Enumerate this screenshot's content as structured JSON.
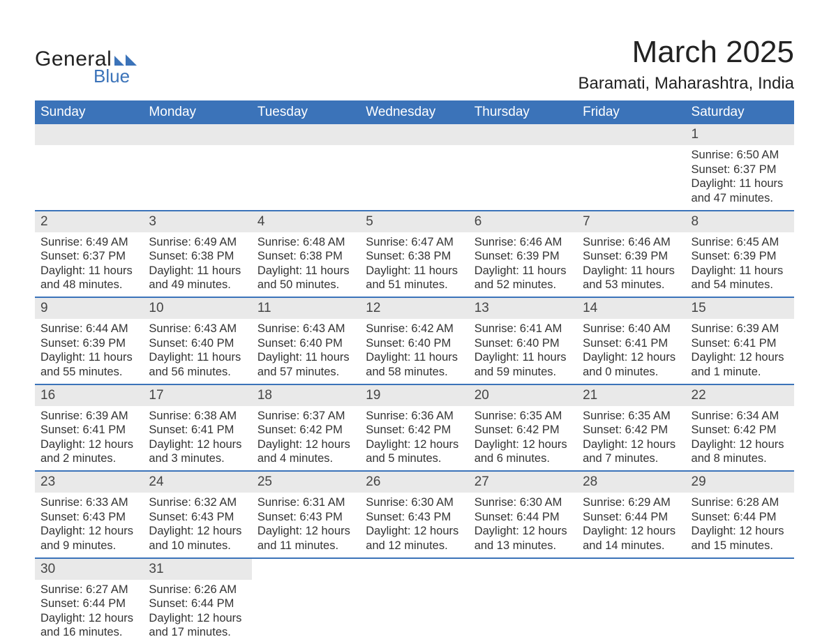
{
  "logo": {
    "text1": "General",
    "text2": "Blue",
    "text1_color": "#222222",
    "text2_color": "#3b73b9",
    "icon_color": "#3b73b9"
  },
  "header": {
    "month_title": "March 2025",
    "location": "Baramati, Maharashtra, India",
    "title_color": "#222222",
    "title_fontsize": 44,
    "location_fontsize": 24
  },
  "calendar": {
    "type": "table",
    "header_bg": "#3b73b9",
    "header_text_color": "#ffffff",
    "row_divider_color": "#3b73b9",
    "daynum_bg": "#e9e9e9",
    "daynum_color": "#454545",
    "body_text_color": "#333333",
    "day_fontsize": 19,
    "content_fontsize": 16.5,
    "columns": [
      "Sunday",
      "Monday",
      "Tuesday",
      "Wednesday",
      "Thursday",
      "Friday",
      "Saturday"
    ],
    "weeks": [
      [
        null,
        null,
        null,
        null,
        null,
        null,
        {
          "n": "1",
          "sunrise": "Sunrise: 6:50 AM",
          "sunset": "Sunset: 6:37 PM",
          "d1": "Daylight: 11 hours",
          "d2": "and 47 minutes."
        }
      ],
      [
        {
          "n": "2",
          "sunrise": "Sunrise: 6:49 AM",
          "sunset": "Sunset: 6:37 PM",
          "d1": "Daylight: 11 hours",
          "d2": "and 48 minutes."
        },
        {
          "n": "3",
          "sunrise": "Sunrise: 6:49 AM",
          "sunset": "Sunset: 6:38 PM",
          "d1": "Daylight: 11 hours",
          "d2": "and 49 minutes."
        },
        {
          "n": "4",
          "sunrise": "Sunrise: 6:48 AM",
          "sunset": "Sunset: 6:38 PM",
          "d1": "Daylight: 11 hours",
          "d2": "and 50 minutes."
        },
        {
          "n": "5",
          "sunrise": "Sunrise: 6:47 AM",
          "sunset": "Sunset: 6:38 PM",
          "d1": "Daylight: 11 hours",
          "d2": "and 51 minutes."
        },
        {
          "n": "6",
          "sunrise": "Sunrise: 6:46 AM",
          "sunset": "Sunset: 6:39 PM",
          "d1": "Daylight: 11 hours",
          "d2": "and 52 minutes."
        },
        {
          "n": "7",
          "sunrise": "Sunrise: 6:46 AM",
          "sunset": "Sunset: 6:39 PM",
          "d1": "Daylight: 11 hours",
          "d2": "and 53 minutes."
        },
        {
          "n": "8",
          "sunrise": "Sunrise: 6:45 AM",
          "sunset": "Sunset: 6:39 PM",
          "d1": "Daylight: 11 hours",
          "d2": "and 54 minutes."
        }
      ],
      [
        {
          "n": "9",
          "sunrise": "Sunrise: 6:44 AM",
          "sunset": "Sunset: 6:39 PM",
          "d1": "Daylight: 11 hours",
          "d2": "and 55 minutes."
        },
        {
          "n": "10",
          "sunrise": "Sunrise: 6:43 AM",
          "sunset": "Sunset: 6:40 PM",
          "d1": "Daylight: 11 hours",
          "d2": "and 56 minutes."
        },
        {
          "n": "11",
          "sunrise": "Sunrise: 6:43 AM",
          "sunset": "Sunset: 6:40 PM",
          "d1": "Daylight: 11 hours",
          "d2": "and 57 minutes."
        },
        {
          "n": "12",
          "sunrise": "Sunrise: 6:42 AM",
          "sunset": "Sunset: 6:40 PM",
          "d1": "Daylight: 11 hours",
          "d2": "and 58 minutes."
        },
        {
          "n": "13",
          "sunrise": "Sunrise: 6:41 AM",
          "sunset": "Sunset: 6:40 PM",
          "d1": "Daylight: 11 hours",
          "d2": "and 59 minutes."
        },
        {
          "n": "14",
          "sunrise": "Sunrise: 6:40 AM",
          "sunset": "Sunset: 6:41 PM",
          "d1": "Daylight: 12 hours",
          "d2": "and 0 minutes."
        },
        {
          "n": "15",
          "sunrise": "Sunrise: 6:39 AM",
          "sunset": "Sunset: 6:41 PM",
          "d1": "Daylight: 12 hours",
          "d2": "and 1 minute."
        }
      ],
      [
        {
          "n": "16",
          "sunrise": "Sunrise: 6:39 AM",
          "sunset": "Sunset: 6:41 PM",
          "d1": "Daylight: 12 hours",
          "d2": "and 2 minutes."
        },
        {
          "n": "17",
          "sunrise": "Sunrise: 6:38 AM",
          "sunset": "Sunset: 6:41 PM",
          "d1": "Daylight: 12 hours",
          "d2": "and 3 minutes."
        },
        {
          "n": "18",
          "sunrise": "Sunrise: 6:37 AM",
          "sunset": "Sunset: 6:42 PM",
          "d1": "Daylight: 12 hours",
          "d2": "and 4 minutes."
        },
        {
          "n": "19",
          "sunrise": "Sunrise: 6:36 AM",
          "sunset": "Sunset: 6:42 PM",
          "d1": "Daylight: 12 hours",
          "d2": "and 5 minutes."
        },
        {
          "n": "20",
          "sunrise": "Sunrise: 6:35 AM",
          "sunset": "Sunset: 6:42 PM",
          "d1": "Daylight: 12 hours",
          "d2": "and 6 minutes."
        },
        {
          "n": "21",
          "sunrise": "Sunrise: 6:35 AM",
          "sunset": "Sunset: 6:42 PM",
          "d1": "Daylight: 12 hours",
          "d2": "and 7 minutes."
        },
        {
          "n": "22",
          "sunrise": "Sunrise: 6:34 AM",
          "sunset": "Sunset: 6:42 PM",
          "d1": "Daylight: 12 hours",
          "d2": "and 8 minutes."
        }
      ],
      [
        {
          "n": "23",
          "sunrise": "Sunrise: 6:33 AM",
          "sunset": "Sunset: 6:43 PM",
          "d1": "Daylight: 12 hours",
          "d2": "and 9 minutes."
        },
        {
          "n": "24",
          "sunrise": "Sunrise: 6:32 AM",
          "sunset": "Sunset: 6:43 PM",
          "d1": "Daylight: 12 hours",
          "d2": "and 10 minutes."
        },
        {
          "n": "25",
          "sunrise": "Sunrise: 6:31 AM",
          "sunset": "Sunset: 6:43 PM",
          "d1": "Daylight: 12 hours",
          "d2": "and 11 minutes."
        },
        {
          "n": "26",
          "sunrise": "Sunrise: 6:30 AM",
          "sunset": "Sunset: 6:43 PM",
          "d1": "Daylight: 12 hours",
          "d2": "and 12 minutes."
        },
        {
          "n": "27",
          "sunrise": "Sunrise: 6:30 AM",
          "sunset": "Sunset: 6:44 PM",
          "d1": "Daylight: 12 hours",
          "d2": "and 13 minutes."
        },
        {
          "n": "28",
          "sunrise": "Sunrise: 6:29 AM",
          "sunset": "Sunset: 6:44 PM",
          "d1": "Daylight: 12 hours",
          "d2": "and 14 minutes."
        },
        {
          "n": "29",
          "sunrise": "Sunrise: 6:28 AM",
          "sunset": "Sunset: 6:44 PM",
          "d1": "Daylight: 12 hours",
          "d2": "and 15 minutes."
        }
      ],
      [
        {
          "n": "30",
          "sunrise": "Sunrise: 6:27 AM",
          "sunset": "Sunset: 6:44 PM",
          "d1": "Daylight: 12 hours",
          "d2": "and 16 minutes."
        },
        {
          "n": "31",
          "sunrise": "Sunrise: 6:26 AM",
          "sunset": "Sunset: 6:44 PM",
          "d1": "Daylight: 12 hours",
          "d2": "and 17 minutes."
        },
        null,
        null,
        null,
        null,
        null
      ]
    ]
  }
}
